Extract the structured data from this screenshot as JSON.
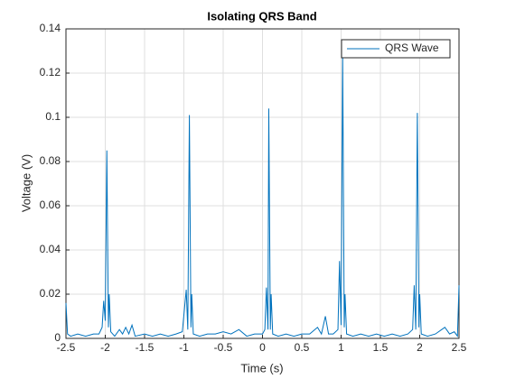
{
  "chart_data": {
    "type": "line",
    "title": "Isolating QRS Band",
    "xlabel": "Time (s)",
    "ylabel": "Voltage (V)",
    "x": [
      -2.5,
      -2.48,
      -2.44,
      -2.35,
      -2.25,
      -2.15,
      -2.08,
      -2.04,
      -2.02,
      -2.0,
      -1.98,
      -1.96,
      -1.95,
      -1.93,
      -1.88,
      -1.82,
      -1.78,
      -1.74,
      -1.7,
      -1.66,
      -1.62,
      -1.5,
      -1.4,
      -1.3,
      -1.2,
      -1.1,
      -1.02,
      -0.97,
      -0.95,
      -0.93,
      -0.91,
      -0.9,
      -0.88,
      -0.8,
      -0.7,
      -0.6,
      -0.5,
      -0.4,
      -0.3,
      -0.2,
      -0.1,
      0,
      0.03,
      0.05,
      0.07,
      0.08,
      0.1,
      0.11,
      0.13,
      0.2,
      0.3,
      0.4,
      0.5,
      0.6,
      0.7,
      0.75,
      0.8,
      0.84,
      0.9,
      0.96,
      0.98,
      1.0,
      1.02,
      1.04,
      1.05,
      1.07,
      1.15,
      1.25,
      1.35,
      1.45,
      1.55,
      1.65,
      1.75,
      1.85,
      1.91,
      1.93,
      1.95,
      1.97,
      1.99,
      2.0,
      2.02,
      2.1,
      2.2,
      2.28,
      2.32,
      2.38,
      2.44,
      2.48,
      2.5
    ],
    "series": [
      {
        "name": "QRS Wave",
        "color": "#0072bd",
        "values": [
          0.016,
          0.002,
          0.001,
          0.002,
          0.001,
          0.002,
          0.002,
          0.005,
          0.017,
          0.008,
          0.085,
          0.005,
          0.02,
          0.003,
          0.001,
          0.004,
          0.002,
          0.005,
          0.002,
          0.006,
          0.001,
          0.002,
          0.001,
          0.002,
          0.001,
          0.002,
          0.003,
          0.022,
          0.004,
          0.101,
          0.005,
          0.02,
          0.002,
          0.001,
          0.002,
          0.002,
          0.003,
          0.002,
          0.004,
          0.001,
          0.002,
          0.002,
          0.004,
          0.023,
          0.004,
          0.104,
          0.004,
          0.02,
          0.002,
          0.001,
          0.002,
          0.001,
          0.002,
          0.002,
          0.005,
          0.002,
          0.01,
          0.002,
          0.002,
          0.004,
          0.035,
          0.006,
          0.128,
          0.005,
          0.02,
          0.002,
          0.001,
          0.002,
          0.001,
          0.002,
          0.001,
          0.002,
          0.001,
          0.002,
          0.004,
          0.024,
          0.004,
          0.102,
          0.005,
          0.02,
          0.002,
          0.001,
          0.002,
          0.004,
          0.005,
          0.002,
          0.003,
          0.001,
          0.024
        ]
      }
    ],
    "xlim": [
      -2.5,
      2.5
    ],
    "xticks": [
      -2.5,
      -2,
      -1.5,
      -1,
      -0.5,
      0,
      0.5,
      1,
      1.5,
      2,
      2.5
    ],
    "ylim": [
      0,
      0.14
    ],
    "yticks": [
      0,
      0.02,
      0.04,
      0.06,
      0.08,
      0.1,
      0.12,
      0.14
    ],
    "grid": true,
    "legend": "upper right"
  }
}
